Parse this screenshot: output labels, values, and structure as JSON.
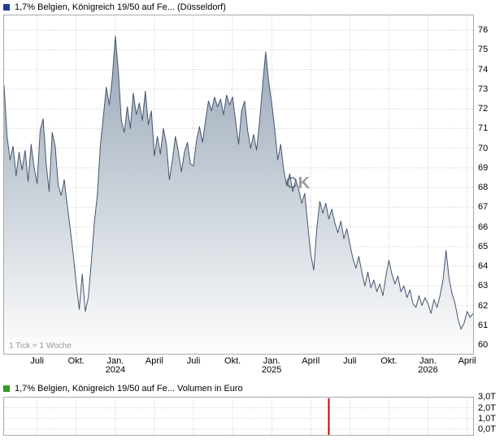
{
  "price_chart": {
    "title": "1,7% Belgien, Königreich 19/50 auf Fe... (Düsseldorf)",
    "legend_color": "#1e3d96",
    "tick_note": "1 Tick = 1 Woche",
    "watermark": "CK"
  },
  "volume_chart": {
    "title": "1,7% Belgien, Königreich 19/50 auf Fe... Volumen in Euro",
    "legend_color": "#2f9e1f"
  },
  "chart_data": [
    {
      "type": "area",
      "title": "1,7% Belgien, Königreich 19/50 auf Fe... (Düsseldorf)",
      "x_unit": "week (1 Tick = 1 Woche)",
      "ylim": [
        59.55,
        76.75
      ],
      "y_ticks": [
        76,
        75,
        74,
        73,
        72,
        71,
        70,
        69,
        68,
        67,
        66,
        65,
        64,
        63,
        62,
        61,
        60
      ],
      "x_ticks": [
        {
          "month": "Juli",
          "year": "",
          "week": 11
        },
        {
          "month": "Okt.",
          "year": "",
          "week": 24
        },
        {
          "month": "Jan.",
          "year": "2024",
          "week": 37
        },
        {
          "month": "April",
          "year": "",
          "week": 50
        },
        {
          "month": "Juli",
          "year": "",
          "week": 63
        },
        {
          "month": "Okt.",
          "year": "",
          "week": 76
        },
        {
          "month": "Jan.",
          "year": "2025",
          "week": 89
        },
        {
          "month": "April",
          "year": "",
          "week": 102
        },
        {
          "month": "Juli",
          "year": "",
          "week": 115
        },
        {
          "month": "Okt.",
          "year": "",
          "week": 128
        },
        {
          "month": "Jan.",
          "year": "2026",
          "week": 141
        },
        {
          "month": "April",
          "year": "",
          "week": 154
        }
      ],
      "values": [
        73.2,
        70.6,
        69.4,
        70.1,
        68.6,
        69.8,
        68.9,
        69.9,
        68.3,
        70.2,
        69.0,
        68.2,
        70.9,
        71.5,
        69.2,
        67.8,
        70.8,
        70.1,
        68.1,
        67.6,
        68.4,
        67.1,
        65.9,
        64.6,
        63.1,
        61.8,
        63.6,
        61.7,
        62.4,
        64.2,
        66.2,
        67.6,
        70.1,
        71.6,
        73.1,
        72.2,
        73.6,
        75.7,
        73.9,
        71.4,
        70.8,
        72.1,
        71.0,
        72.8,
        71.7,
        72.3,
        71.4,
        72.9,
        71.2,
        71.9,
        69.6,
        70.6,
        69.7,
        71.0,
        70.2,
        68.4,
        69.4,
        70.6,
        69.8,
        68.8,
        69.8,
        70.3,
        69.2,
        69.1,
        70.4,
        71.1,
        70.3,
        71.4,
        72.4,
        71.9,
        72.6,
        72.1,
        72.5,
        71.7,
        72.7,
        72.2,
        72.6,
        71.4,
        70.2,
        71.9,
        72.4,
        70.9,
        70.0,
        70.7,
        69.9,
        71.4,
        73.2,
        74.9,
        73.4,
        72.3,
        71.0,
        69.4,
        70.2,
        68.9,
        68.1,
        68.7,
        67.8,
        68.4,
        67.9,
        67.2,
        67.7,
        66.1,
        64.6,
        63.8,
        65.9,
        67.3,
        66.7,
        67.2,
        66.4,
        66.9,
        66.2,
        65.7,
        66.3,
        65.4,
        65.9,
        65.1,
        64.4,
        63.9,
        64.5,
        63.7,
        63.0,
        63.7,
        62.9,
        63.3,
        62.7,
        63.1,
        62.5,
        63.5,
        64.3,
        63.6,
        63.1,
        63.5,
        62.7,
        63.0,
        62.4,
        62.8,
        62.1,
        61.9,
        62.5,
        62.0,
        62.4,
        62.1,
        61.6,
        62.3,
        61.9,
        62.5,
        63.3,
        64.8,
        63.4,
        62.6,
        62.1,
        61.3,
        60.8,
        61.1,
        61.7,
        61.4,
        61.6
      ],
      "colors": {
        "line": "#45566e",
        "fill_top": "#96a5b6",
        "fill_bottom": "#fefefe",
        "grid": "#c9c9c9"
      },
      "grid": "dotted",
      "legend_position": "top-left"
    },
    {
      "type": "bar",
      "title": "1,7% Belgien, Königreich 19/50 auf Fe... Volumen in Euro",
      "ylabel": "Volumen in Euro",
      "ylim": [
        0,
        3
      ],
      "y_ticks": [
        {
          "label": "3,0T",
          "value": 3
        },
        {
          "label": "2,0T",
          "value": 2
        },
        {
          "label": "1,0T",
          "value": 1
        },
        {
          "label": "0,0T",
          "value": 0
        }
      ],
      "bars": [
        {
          "week": 108,
          "value": 2.9
        }
      ],
      "colors": {
        "bar": "#cc0000",
        "grid": "#c9c9c9"
      },
      "grid": "dotted"
    }
  ]
}
